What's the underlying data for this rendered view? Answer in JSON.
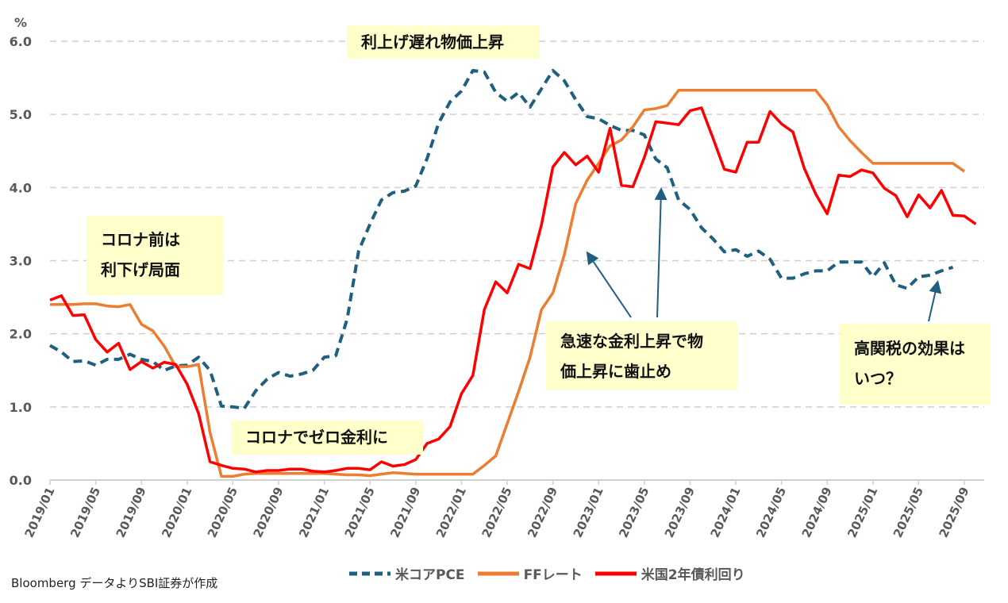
{
  "chart_data": {
    "type": "line",
    "unit_label": "%",
    "ylim": [
      0,
      6
    ],
    "yticks": [
      "0.0",
      "1.0",
      "2.0",
      "3.0",
      "4.0",
      "5.0",
      "6.0"
    ],
    "grid": true,
    "legend_placement": "bottom",
    "x_start": "2019/01",
    "x_frequency": "monthly",
    "xtick_labels": [
      "2019/01",
      "2019/05",
      "2019/09",
      "2020/01",
      "2020/05",
      "2020/09",
      "2021/01",
      "2021/05",
      "2021/09",
      "2022/01",
      "2022/05",
      "2022/09",
      "2023/01",
      "2023/05",
      "2023/09",
      "2024/01",
      "2024/05",
      "2024/09",
      "2025/01",
      "2025/05",
      "2025/09"
    ],
    "series": [
      {
        "name": "米コアPCE",
        "color": "#1F5F80",
        "dash": true,
        "values": [
          1.84,
          1.75,
          1.62,
          1.63,
          1.57,
          1.65,
          1.65,
          1.72,
          1.65,
          1.62,
          1.5,
          1.56,
          1.57,
          1.68,
          1.5,
          1.01,
          1.0,
          0.98,
          1.22,
          1.38,
          1.47,
          1.42,
          1.45,
          1.5,
          1.68,
          1.7,
          2.2,
          3.13,
          3.5,
          3.83,
          3.93,
          3.95,
          4.02,
          4.4,
          4.88,
          5.17,
          5.32,
          5.6,
          5.58,
          5.3,
          5.18,
          5.3,
          5.1,
          5.35,
          5.6,
          5.46,
          5.2,
          4.97,
          4.94,
          4.85,
          4.78,
          4.78,
          4.72,
          4.39,
          4.27,
          3.83,
          3.7,
          3.45,
          3.3,
          3.12,
          3.15,
          3.06,
          3.13,
          3.02,
          2.76,
          2.76,
          2.82,
          2.86,
          2.86,
          2.98,
          2.98,
          2.98,
          2.78,
          2.97,
          2.67,
          2.62,
          2.78,
          2.8,
          2.86,
          2.91
        ]
      },
      {
        "name": "FFレート",
        "color": "#ED7D31",
        "dash": false,
        "values": [
          2.4,
          2.4,
          2.4,
          2.41,
          2.41,
          2.38,
          2.37,
          2.4,
          2.13,
          2.04,
          1.83,
          1.55,
          1.55,
          1.58,
          0.65,
          0.05,
          0.05,
          0.08,
          0.09,
          0.09,
          0.09,
          0.09,
          0.09,
          0.09,
          0.09,
          0.08,
          0.07,
          0.07,
          0.06,
          0.08,
          0.1,
          0.09,
          0.08,
          0.08,
          0.08,
          0.08,
          0.08,
          0.08,
          0.2,
          0.33,
          0.77,
          1.21,
          1.68,
          2.33,
          2.56,
          3.08,
          3.78,
          4.1,
          4.33,
          4.57,
          4.65,
          4.83,
          5.06,
          5.08,
          5.12,
          5.33,
          5.33,
          5.33,
          5.33,
          5.33,
          5.33,
          5.33,
          5.33,
          5.33,
          5.33,
          5.33,
          5.33,
          5.33,
          5.13,
          4.83,
          4.64,
          4.48,
          4.33,
          4.33,
          4.33,
          4.33,
          4.33,
          4.33,
          4.33,
          4.33,
          4.22
        ]
      },
      {
        "name": "米国2年債利回り",
        "color": "#FF0000",
        "dash": false,
        "values": [
          2.46,
          2.52,
          2.25,
          2.26,
          1.92,
          1.75,
          1.87,
          1.51,
          1.62,
          1.53,
          1.61,
          1.58,
          1.31,
          0.91,
          0.25,
          0.2,
          0.16,
          0.15,
          0.11,
          0.13,
          0.13,
          0.15,
          0.15,
          0.12,
          0.11,
          0.13,
          0.16,
          0.16,
          0.14,
          0.25,
          0.19,
          0.21,
          0.28,
          0.5,
          0.56,
          0.73,
          1.18,
          1.43,
          2.33,
          2.71,
          2.56,
          2.95,
          2.89,
          3.49,
          4.28,
          4.48,
          4.31,
          4.43,
          4.21,
          4.81,
          4.03,
          4.01,
          4.41,
          4.9,
          4.88,
          4.86,
          5.05,
          5.09,
          4.68,
          4.25,
          4.21,
          4.62,
          4.62,
          5.04,
          4.87,
          4.76,
          4.26,
          3.91,
          3.64,
          4.17,
          4.15,
          4.24,
          4.2,
          3.99,
          3.89,
          3.6,
          3.9,
          3.72,
          3.96,
          3.62,
          3.61,
          3.5
        ]
      }
    ],
    "annotations": [
      {
        "text": "利上げ遅れ物価上昇"
      },
      {
        "text": "コロナ前は\n利下げ局面"
      },
      {
        "text": "コロナでゼロ金利に"
      },
      {
        "text": "急速な金利上昇で物\n価上昇に歯止め"
      },
      {
        "text": "高関税の効果は\nいつ？"
      }
    ],
    "annotation_color": "#FFFFCC",
    "arrow_color": "#1F5F80"
  },
  "source": "Bloomberg データよりSBI証券が作成"
}
